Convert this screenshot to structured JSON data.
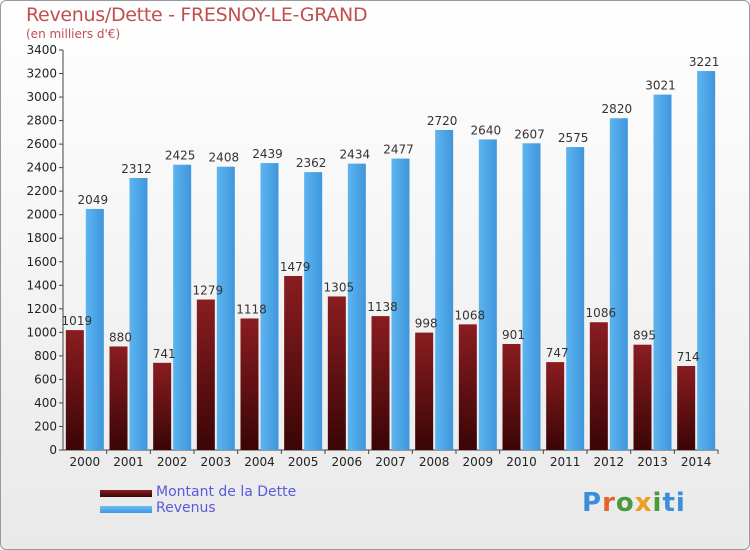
{
  "title": "Revenus/Dette - FRESNOY-LE-GRAND",
  "subtitle": "(en milliers d'€)",
  "legend": {
    "dette_label": "Montant de la Dette",
    "revenus_label": "Revenus"
  },
  "logo": {
    "text": "Proxiti"
  },
  "colors": {
    "dette": "#7a1416",
    "revenus": "#4ea7e8",
    "title": "#c0504d",
    "legend_text": "#5a5adc"
  },
  "chart_data": {
    "type": "bar",
    "title": "Revenus/Dette - FRESNOY-LE-GRAND",
    "subtitle": "(en milliers d'€)",
    "categories": [
      "2000",
      "2001",
      "2002",
      "2003",
      "2004",
      "2005",
      "2006",
      "2007",
      "2008",
      "2009",
      "2010",
      "2011",
      "2012",
      "2013",
      "2014"
    ],
    "series": [
      {
        "name": "Montant de la Dette",
        "values": [
          1019,
          880,
          741,
          1279,
          1118,
          1479,
          1305,
          1138,
          998,
          1068,
          901,
          747,
          1086,
          895,
          714
        ],
        "labels": [
          "1019",
          "880",
          "741",
          "1279",
          "1118",
          "1479",
          "1305",
          "1138",
          "998",
          "1068",
          "901",
          "747",
          "1086",
          "895",
          "714"
        ]
      },
      {
        "name": "Revenus",
        "values": [
          2049,
          2312,
          2425,
          2408,
          2439,
          2362,
          2434,
          2477,
          2720,
          2640,
          2607,
          2575,
          2820,
          3021,
          3221
        ],
        "labels": [
          "2049",
          "2312",
          "2425",
          "2408",
          "2439",
          "2362",
          "2434",
          "2477",
          "2720",
          "2640",
          "2607",
          "2575",
          "2820",
          "3021",
          "3221"
        ]
      }
    ],
    "ylim": [
      0,
      3400
    ],
    "yticks": [
      "0",
      "200",
      "400",
      "600",
      "800",
      "1000",
      "1200",
      "1400",
      "1600",
      "1800",
      "2000",
      "2200",
      "2400",
      "2600",
      "2800",
      "3000",
      "3200",
      "3400"
    ],
    "grid": false,
    "legend_position": "bottom-left"
  }
}
